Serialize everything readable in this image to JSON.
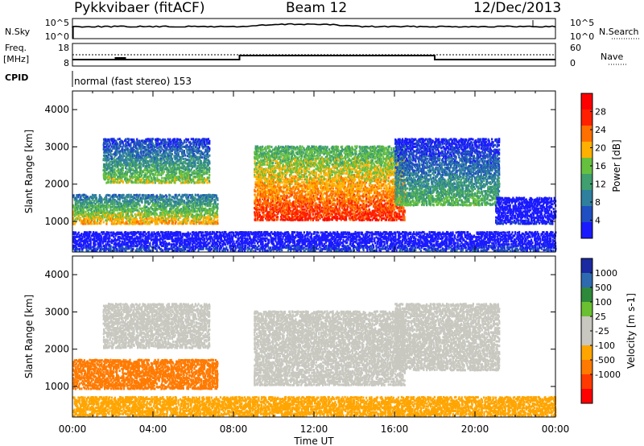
{
  "header": {
    "station": "Pykkvibaer (fitACF)",
    "beam": "Beam 12",
    "date": "12/Dec/2013"
  },
  "aux_panels": {
    "nsky_label": "N.Sky",
    "nsearch_label": "N.Search",
    "freq_label_line1": "Freq.",
    "freq_label_line2": "[MHz]",
    "nave_label": "Nave",
    "cpid_label": "CPID",
    "cpid_text": "normal (fast stereo) 153",
    "nsky_ticks": [
      "10^5",
      "10^0"
    ],
    "nsearch_ticks": [
      "10^5",
      "10^0"
    ],
    "freq_ticks": [
      "18",
      "8"
    ],
    "nave_ticks": [
      "60",
      "0"
    ]
  },
  "colors": {
    "power_scale": [
      "#1a1aff",
      "#1f4fc0",
      "#2f7f9f",
      "#3f9f6f",
      "#66c040",
      "#ffb000",
      "#ff7000",
      "#ff2000",
      "#ff0000"
    ],
    "velocity_scale": [
      "#ff0000",
      "#ff3a00",
      "#ff7a00",
      "#ffa500",
      "#c8c8c0",
      "#c8c8c0",
      "#6ac030",
      "#2e8a3a",
      "#2e6ab0",
      "#1a2aa0"
    ]
  },
  "chart_data": [
    {
      "type": "heatmap",
      "panel": "power",
      "ylabel": "Slant Range [km]",
      "yticks": [
        "1000",
        "2000",
        "3000",
        "4000"
      ],
      "ylim": [
        180,
        4500
      ],
      "xlim": [
        0,
        24
      ],
      "colorbar_label": "Power [dB]",
      "colorbar_ticks": [
        "4",
        "8",
        "12",
        "16",
        "20",
        "24",
        "28"
      ],
      "colorbar_range": [
        0,
        32
      ],
      "echo_regions": [
        {
          "t_start": 0.0,
          "t_end": 7.2,
          "r_low": 900,
          "r_high": 1700,
          "peak_db": 24
        },
        {
          "t_start": 1.5,
          "t_end": 6.8,
          "r_low": 2000,
          "r_high": 3200,
          "peak_db": 20
        },
        {
          "t_start": 9.0,
          "t_end": 16.5,
          "r_low": 1000,
          "r_high": 3000,
          "peak_db": 30
        },
        {
          "t_start": 16.0,
          "t_end": 21.2,
          "r_low": 1400,
          "r_high": 3200,
          "peak_db": 18
        },
        {
          "t_start": 21.0,
          "t_end": 24.0,
          "r_low": 900,
          "r_high": 1600,
          "peak_db": 6
        },
        {
          "t_start": 0.0,
          "t_end": 24.0,
          "r_low": 180,
          "r_high": 700,
          "peak_db": 8
        }
      ]
    },
    {
      "type": "heatmap",
      "panel": "velocity",
      "ylabel": "Slant Range [km]",
      "yticks": [
        "1000",
        "2000",
        "3000",
        "4000"
      ],
      "ylim": [
        180,
        4500
      ],
      "xlim": [
        0,
        24
      ],
      "xlabel": "Time UT",
      "xticks": [
        "00:00",
        "04:00",
        "08:00",
        "12:00",
        "16:00",
        "20:00",
        "00:00"
      ],
      "colorbar_label": "Velocity [m s-1]",
      "colorbar_ticks": [
        "1000",
        "500",
        "100",
        "25",
        "-25",
        "-100",
        "-500",
        "-1000"
      ],
      "echo_regions": [
        {
          "t_start": 0.0,
          "t_end": 7.2,
          "r_low": 900,
          "r_high": 1700,
          "velocity": -300
        },
        {
          "t_start": 1.5,
          "t_end": 6.8,
          "r_low": 2000,
          "r_high": 3200,
          "velocity": 0
        },
        {
          "t_start": 9.0,
          "t_end": 16.5,
          "r_low": 1000,
          "r_high": 3000,
          "velocity": 0
        },
        {
          "t_start": 16.0,
          "t_end": 21.2,
          "r_low": 1400,
          "r_high": 3200,
          "velocity": 0
        },
        {
          "t_start": 0.0,
          "t_end": 24.0,
          "r_low": 180,
          "r_high": 700,
          "velocity": -50
        }
      ]
    }
  ]
}
